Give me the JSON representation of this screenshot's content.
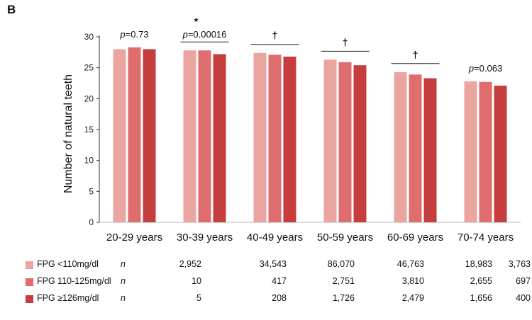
{
  "panel_label": "B",
  "chart_data": {
    "type": "bar",
    "title": "",
    "xlabel": "",
    "ylabel": "Number of natural teeth",
    "ylim": [
      0,
      30
    ],
    "yticks": [
      0,
      5,
      10,
      15,
      20,
      25,
      30
    ],
    "grid": false,
    "categories": [
      "20-29 years",
      "30-39 years",
      "40-49 years",
      "50-59 years",
      "60-69 years",
      "70-74 years"
    ],
    "series": [
      {
        "name": "FPG <110mg/dl",
        "color": "#eba5a0",
        "values": [
          28.0,
          27.8,
          27.4,
          26.3,
          24.3,
          22.8
        ]
      },
      {
        "name": "FPG 110-125mg/dl",
        "color": "#e06d6d",
        "values": [
          28.3,
          27.8,
          27.1,
          25.9,
          23.9,
          22.7
        ]
      },
      {
        "name": "FPG ≥126mg/dl",
        "color": "#c53d3d",
        "values": [
          28.0,
          27.2,
          26.8,
          25.4,
          23.3,
          22.1
        ]
      }
    ],
    "annotations": [
      {
        "category": "20-29 years",
        "mark": "",
        "text": "p=0.73",
        "bracket": false
      },
      {
        "category": "30-39 years",
        "mark": "*",
        "text": "p=0.00016",
        "bracket": true
      },
      {
        "category": "40-49 years",
        "mark": "†",
        "text": "",
        "bracket": true
      },
      {
        "category": "50-59 years",
        "mark": "†",
        "text": "",
        "bracket": true
      },
      {
        "category": "60-69 years",
        "mark": "†",
        "text": "",
        "bracket": true
      },
      {
        "category": "70-74 years",
        "mark": "",
        "text": "p=0.063",
        "bracket": false
      }
    ]
  },
  "sample_table": {
    "n_label": "n",
    "rows": [
      {
        "name": "FPG <110mg/dl",
        "color": "#eba5a0",
        "counts": [
          "2,952",
          "34,543",
          "86,070",
          "46,763",
          "18,983",
          "3,763"
        ]
      },
      {
        "name": "FPG 110-125mg/dl",
        "color": "#e06d6d",
        "counts": [
          "10",
          "417",
          "2,751",
          "3,810",
          "2,655",
          "697"
        ]
      },
      {
        "name": "FPG ≥126mg/dl",
        "color": "#c53d3d",
        "counts": [
          "5",
          "208",
          "1,726",
          "2,479",
          "1,656",
          "400"
        ]
      }
    ]
  }
}
